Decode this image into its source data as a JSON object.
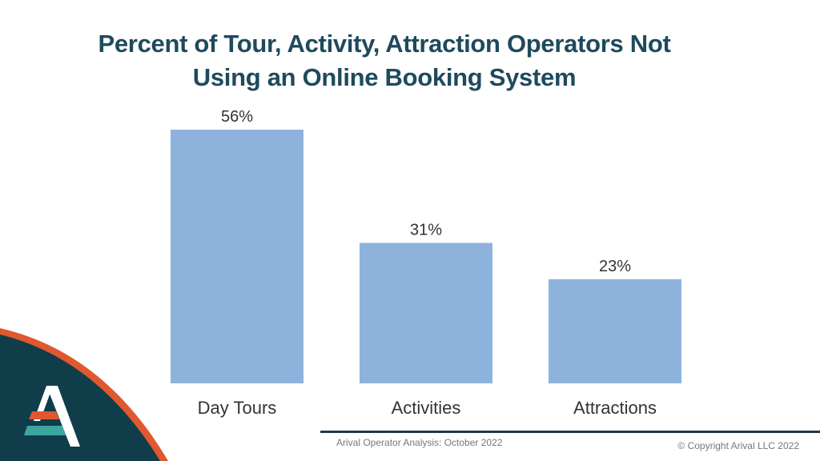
{
  "title": "Percent of Tour, Activity, Attraction Operators Not\nUsing an Online Booking System",
  "footer": {
    "source": "Arival Operator Analysis: October 2022",
    "copyright": "© Copyright Arival LLC 2022"
  },
  "colors": {
    "bar": "#8db3dc",
    "title": "#1e4a5c",
    "corner_dark": "#0f3d4a",
    "corner_accent": "#e0582f",
    "logo_teal": "#3ba7a0",
    "logo_red": "#d64a3a"
  },
  "chart_data": {
    "type": "bar",
    "title": "Percent of Tour, Activity, Attraction Operators Not Using an Online Booking System",
    "categories": [
      "Day Tours",
      "Activities",
      "Attractions"
    ],
    "values": [
      56,
      31,
      23
    ],
    "data_labels": [
      "56%",
      "31%",
      "23%"
    ],
    "xlabel": "",
    "ylabel": "",
    "ylim": [
      0,
      56
    ],
    "grid": false,
    "legend": "none"
  }
}
